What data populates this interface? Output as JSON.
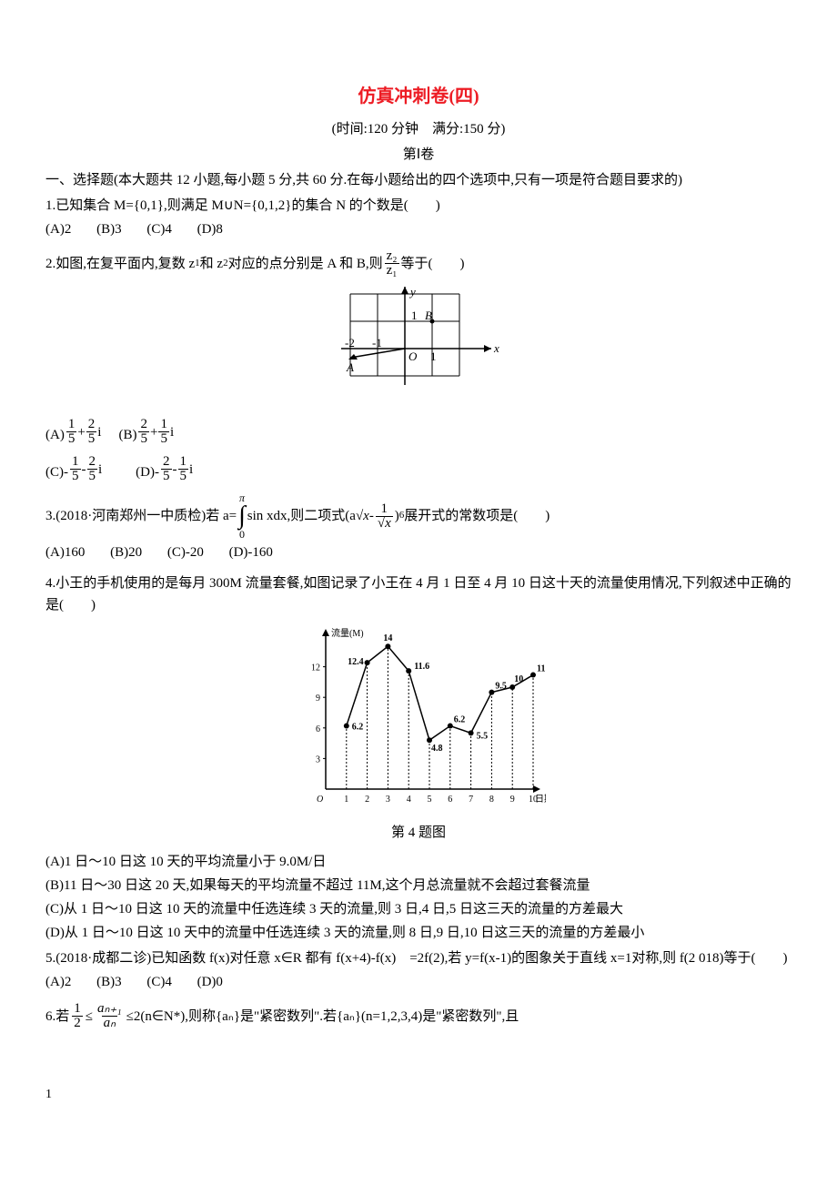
{
  "title": "仿真冲刺卷(四)",
  "subtitle": "(时间:120 分钟　满分:150 分)",
  "section_label": "第Ⅰ卷",
  "intro_line1": "一、选择题(本大题共 12 小题,每小题 5 分,共 60 分.在每小题给出的四个选项中,只有一项是符合题目要求的)",
  "q1": {
    "text": "1.已知集合 M={0,1},则满足 M∪N={0,1,2}的集合 N 的个数是(　　)",
    "A": "(A)2",
    "B": "(B)3",
    "C": "(C)4",
    "D": "(D)8"
  },
  "q2": {
    "prefix": "2.如图,在复平面内,复数 z",
    "sub1": "1",
    "mid1": "和 z",
    "sub2": "2",
    "mid2": "对应的点分别是 A 和 B,则",
    "frac_num": "z₂",
    "frac_den": "z₁",
    "suffix": "等于(　　)",
    "A_label": "(A)",
    "A_n1": "1",
    "A_d1": "5",
    "A_op": "+",
    "A_n2": "2",
    "A_d2": "5",
    "A_i": "i",
    "B_label": "(B)",
    "B_n1": "2",
    "B_d1": "5",
    "B_op": "+",
    "B_n2": "1",
    "B_d2": "5",
    "B_i": "i",
    "C_label": "(C)-",
    "C_n1": "1",
    "C_d1": "5",
    "C_op": "-",
    "C_n2": "2",
    "C_d2": "5",
    "C_i": "i",
    "D_label": "(D)-",
    "D_n1": "2",
    "D_d1": "5",
    "D_op": "-",
    "D_n2": "1",
    "D_d2": "5",
    "D_i": "i"
  },
  "q2_figure": {
    "axis_labels": {
      "y": "y",
      "x": "x",
      "B": "B",
      "A": "A",
      "n2": "-2",
      "n1": "-1",
      "p1": "1",
      "one_y": "1",
      "O": "O"
    },
    "colors": {
      "stroke": "#000000",
      "bg": "#ffffff"
    }
  },
  "q3": {
    "prefix": "3.(2018·河南郑州一中质检)若 a=",
    "int_upper": "π",
    "int_lower": "0",
    "int_body": " sin xdx,则二项式(a",
    "sqrt_x1": "√x",
    "minus": "-",
    "one": "1",
    "sqrt_x2": "√x",
    "close_pow": ")",
    "pow": "6",
    "suffix": "展开式的常数项是(　　)",
    "A": "(A)160",
    "B": "(B)20",
    "C": "(C)-20",
    "D": "(D)-160"
  },
  "q4": {
    "text": "4.小王的手机使用的是每月 300M 流量套餐,如图记录了小王在 4 月 1 日至 4 月 10 日这十天的流量使用情况,下列叙述中正确的是(　　)",
    "caption": "第 4 题图",
    "A": "(A)1 日～10 日这 10 天的平均流量小于 9.0M/日",
    "B": "(B)11 日～30 日这 20 天,如果每天的平均流量不超过 11M,这个月总流量就不会超过套餐流量",
    "C": "(C)从 1 日～10 日这 10 天的流量中任选连续 3 天的流量,则 3 日,4 日,5 日这三天的流量的方差最大",
    "D": "(D)从 1 日～10 日这 10 天中的流量中任选连续 3 天的流量,则 8 日,9 日,10 日这三天的流量的方差最小"
  },
  "q4_chart": {
    "type": "line",
    "ylabel": "流量(M)",
    "xlabel": "日期",
    "x_values": [
      1,
      2,
      3,
      4,
      5,
      6,
      7,
      8,
      9,
      10
    ],
    "y_values": [
      6.2,
      12.4,
      14,
      11.6,
      4.8,
      6.2,
      5.5,
      9.5,
      10,
      11.2
    ],
    "point_labels": [
      "6.2",
      "12.4",
      "14",
      "11.6",
      "4.8",
      "6.2",
      "5.5",
      "9.5",
      "10",
      "11.2"
    ],
    "yticks": [
      3,
      6,
      9,
      12
    ],
    "ylim": [
      0,
      15
    ],
    "colors": {
      "axis": "#000000",
      "line": "#000000",
      "point_fill": "#000000",
      "grid_dash": "#000000",
      "bg": "#ffffff"
    },
    "line_width": 1.5,
    "dash_pattern": "2,2",
    "marker_radius": 3,
    "label_fontsize": 10
  },
  "q5": {
    "text": "5.(2018·成都二诊)已知函数 f(x)对任意 x∈R 都有 f(x+4)-f(x)　=2f(2),若 y=f(x-1)的图象关于直线 x=1对称,则 f(2 018)等于(　　)",
    "A": "(A)2",
    "B": "(B)3",
    "C": "(C)4",
    "D": "(D)0"
  },
  "q6": {
    "prefix": "6.若",
    "f1_n": "1",
    "f1_d": "2",
    "le1": "≤",
    "f2_n": "aₙ₊₁",
    "f2_d": "aₙ",
    "le2": "≤2(n∈N*),则称{aₙ}是\"紧密数列\".若{aₙ}(n=1,2,3,4)是\"紧密数列\",且"
  },
  "page_number": "1"
}
